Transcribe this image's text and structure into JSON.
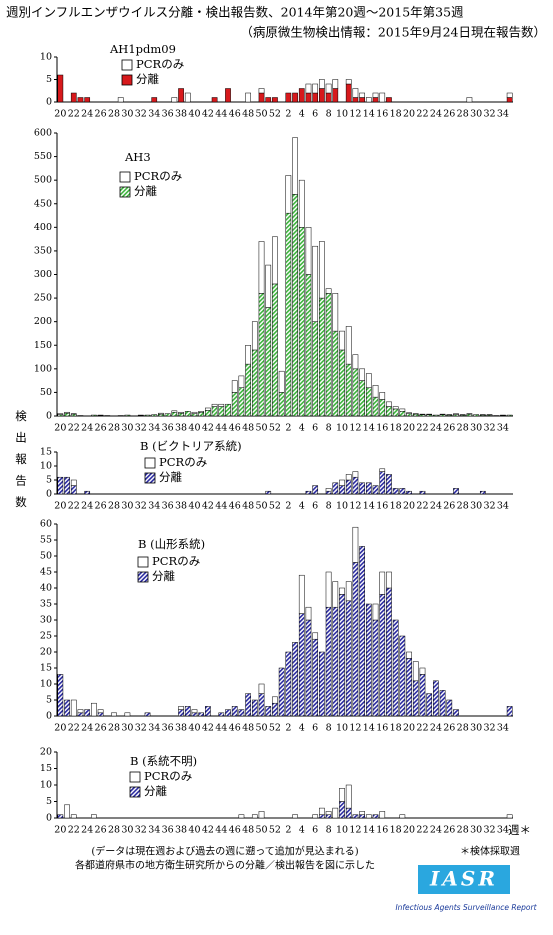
{
  "title": "週別インフルエンザウイルス分離・検出報告数、2014年第20週〜2015年第35週",
  "subtitle": "（病原微生物検出情報：2015年9月24日現在報告数）",
  "y_axis_label": "検出報告数",
  "x_axis_label": "週＊",
  "notes": [
    "(データは現在週および過去の週に遡って追加が見込まれる)",
    "各都道府県市の地方衛生研究所からの分離／検出報告を図に示した"
  ],
  "footnote": "＊検体採取週",
  "logo": "IASR",
  "logo_caption": "Infectious Agents Surveillance Report",
  "chart_data": [
    {
      "type": "bar",
      "stacked": true,
      "title": "AH1pdm09",
      "categories": [
        "20",
        null,
        "22",
        null,
        "24",
        null,
        "26",
        null,
        "28",
        null,
        "30",
        null,
        "32",
        null,
        "34",
        null,
        "36",
        null,
        "38",
        null,
        "40",
        null,
        "42",
        null,
        "44",
        null,
        "46",
        null,
        "48",
        null,
        "50",
        null,
        "52",
        null,
        "2",
        null,
        "4",
        null,
        "6",
        null,
        "8",
        null,
        "10",
        null,
        "12",
        null,
        "14",
        null,
        "16",
        null,
        "18",
        null,
        "20",
        null,
        "22",
        null,
        "24",
        null,
        "26",
        null,
        "28",
        null,
        "30",
        null,
        "32",
        null,
        "34",
        null
      ],
      "series": [
        {
          "name": "PCRのみ",
          "color": "#ffffff",
          "values": [
            0,
            0,
            0,
            0,
            0,
            0,
            0,
            0,
            0,
            1,
            0,
            0,
            0,
            0,
            0,
            0,
            0,
            1,
            0,
            2,
            0,
            0,
            0,
            0,
            0,
            0,
            0,
            0,
            2,
            0,
            1,
            0,
            0,
            0,
            0,
            0,
            0,
            2,
            2,
            2,
            2,
            2,
            0,
            1,
            2,
            1,
            1,
            1,
            2,
            0,
            0,
            0,
            0,
            0,
            0,
            0,
            0,
            0,
            0,
            0,
            0,
            1,
            0,
            0,
            0,
            0,
            0,
            1
          ]
        },
        {
          "name": "分離",
          "color": "#d7191c",
          "pattern": "solid",
          "values": [
            6,
            0,
            2,
            1,
            1,
            0,
            0,
            0,
            0,
            0,
            0,
            0,
            0,
            0,
            1,
            0,
            0,
            0,
            3,
            0,
            0,
            0,
            0,
            1,
            0,
            3,
            0,
            0,
            0,
            0,
            2,
            1,
            1,
            0,
            2,
            2,
            3,
            2,
            2,
            3,
            2,
            3,
            0,
            4,
            1,
            1,
            0,
            1,
            0,
            1,
            0,
            0,
            0,
            0,
            0,
            0,
            0,
            0,
            0,
            0,
            0,
            0,
            0,
            0,
            0,
            0,
            0,
            1
          ]
        }
      ],
      "ylim": [
        0,
        10
      ],
      "yticks": [
        0,
        5,
        10
      ]
    },
    {
      "type": "bar",
      "stacked": true,
      "title": "AH3",
      "categories": [
        "20",
        null,
        "22",
        null,
        "24",
        null,
        "26",
        null,
        "28",
        null,
        "30",
        null,
        "32",
        null,
        "34",
        null,
        "36",
        null,
        "38",
        null,
        "40",
        null,
        "42",
        null,
        "44",
        null,
        "46",
        null,
        "48",
        null,
        "50",
        null,
        "52",
        null,
        "2",
        null,
        "4",
        null,
        "6",
        null,
        "8",
        null,
        "10",
        null,
        "12",
        null,
        "14",
        null,
        "16",
        null,
        "18",
        null,
        "20",
        null,
        "22",
        null,
        "24",
        null,
        "26",
        null,
        "28",
        null,
        "30",
        null,
        "32",
        null,
        "34",
        null
      ],
      "series": [
        {
          "name": "PCRのみ",
          "color": "#ffffff",
          "values": [
            2,
            2,
            1,
            0,
            0,
            0,
            1,
            0,
            0,
            0,
            0,
            0,
            1,
            0,
            0,
            2,
            0,
            3,
            2,
            0,
            3,
            2,
            5,
            5,
            5,
            0,
            25,
            25,
            40,
            60,
            110,
            90,
            100,
            45,
            80,
            120,
            100,
            100,
            160,
            120,
            10,
            80,
            40,
            80,
            30,
            25,
            30,
            25,
            15,
            10,
            5,
            5,
            2,
            1,
            1,
            1,
            0,
            1,
            1,
            2,
            1,
            1,
            0,
            1,
            1,
            0,
            1,
            0
          ]
        },
        {
          "name": "分離",
          "color": "#3cb43c",
          "pattern": "hatch",
          "values": [
            3,
            6,
            4,
            1,
            0,
            2,
            1,
            1,
            0,
            1,
            2,
            0,
            1,
            2,
            3,
            4,
            5,
            8,
            6,
            10,
            5,
            8,
            12,
            20,
            20,
            25,
            50,
            60,
            110,
            140,
            260,
            230,
            280,
            50,
            430,
            470,
            400,
            300,
            200,
            250,
            260,
            180,
            140,
            110,
            100,
            75,
            60,
            40,
            35,
            20,
            15,
            10,
            5,
            4,
            3,
            3,
            2,
            3,
            2,
            3,
            2,
            4,
            3,
            2,
            2,
            1,
            1,
            2
          ]
        }
      ],
      "ylim": [
        0,
        600
      ],
      "yticks": [
        0,
        50,
        100,
        150,
        200,
        250,
        300,
        350,
        400,
        450,
        500,
        550,
        600
      ]
    },
    {
      "type": "bar",
      "stacked": true,
      "title": "B (ビクトリア系統)",
      "categories": [
        "20",
        null,
        "22",
        null,
        "24",
        null,
        "26",
        null,
        "28",
        null,
        "30",
        null,
        "32",
        null,
        "34",
        null,
        "36",
        null,
        "38",
        null,
        "40",
        null,
        "42",
        null,
        "44",
        null,
        "46",
        null,
        "48",
        null,
        "50",
        null,
        "52",
        null,
        "2",
        null,
        "4",
        null,
        "6",
        null,
        "8",
        null,
        "10",
        null,
        "12",
        null,
        "14",
        null,
        "16",
        null,
        "18",
        null,
        "20",
        null,
        "22",
        null,
        "24",
        null,
        "26",
        null,
        "28",
        null,
        "30",
        null,
        "32",
        null,
        "34",
        null
      ],
      "series": [
        {
          "name": "PCRのみ",
          "color": "#ffffff",
          "values": [
            0,
            0,
            2,
            0,
            0,
            0,
            0,
            0,
            0,
            0,
            0,
            0,
            0,
            0,
            0,
            0,
            0,
            0,
            0,
            0,
            0,
            0,
            0,
            0,
            0,
            0,
            0,
            0,
            0,
            0,
            0,
            0,
            0,
            0,
            0,
            0,
            0,
            0,
            0,
            0,
            1,
            0,
            2,
            2,
            2,
            0,
            0,
            0,
            1,
            0,
            0,
            0,
            0,
            0,
            0,
            0,
            0,
            0,
            0,
            0,
            0,
            0,
            0,
            0,
            0,
            0,
            0,
            0
          ]
        },
        {
          "name": "分離",
          "color": "#2a2aa0",
          "pattern": "hatch",
          "values": [
            6,
            6,
            3,
            0,
            1,
            0,
            0,
            0,
            0,
            0,
            0,
            0,
            0,
            0,
            0,
            0,
            0,
            0,
            0,
            0,
            0,
            0,
            0,
            0,
            0,
            0,
            0,
            0,
            0,
            0,
            0,
            1,
            0,
            0,
            0,
            0,
            0,
            1,
            3,
            0,
            1,
            4,
            3,
            5,
            6,
            4,
            4,
            3,
            8,
            7,
            2,
            2,
            1,
            0,
            1,
            0,
            0,
            0,
            0,
            2,
            0,
            0,
            0,
            1,
            0,
            0,
            0,
            0
          ]
        }
      ],
      "ylim": [
        0,
        15
      ],
      "yticks": [
        0,
        5,
        10,
        15
      ]
    },
    {
      "type": "bar",
      "stacked": true,
      "title": "B (山形系統)",
      "categories": [
        "20",
        null,
        "22",
        null,
        "24",
        null,
        "26",
        null,
        "28",
        null,
        "30",
        null,
        "32",
        null,
        "34",
        null,
        "36",
        null,
        "38",
        null,
        "40",
        null,
        "42",
        null,
        "44",
        null,
        "46",
        null,
        "48",
        null,
        "50",
        null,
        "52",
        null,
        "2",
        null,
        "4",
        null,
        "6",
        null,
        "8",
        null,
        "10",
        null,
        "12",
        null,
        "14",
        null,
        "16",
        null,
        "18",
        null,
        "20",
        null,
        "22",
        null,
        "24",
        null,
        "26",
        null,
        "28",
        null,
        "30",
        null,
        "32",
        null,
        "34",
        null
      ],
      "series": [
        {
          "name": "PCRのみ",
          "color": "#ffffff",
          "values": [
            0,
            0,
            5,
            1,
            0,
            4,
            1,
            0,
            1,
            0,
            1,
            0,
            0,
            0,
            0,
            0,
            0,
            0,
            1,
            0,
            1,
            0,
            0,
            0,
            0,
            0,
            0,
            0,
            0,
            0,
            3,
            0,
            2,
            0,
            0,
            0,
            12,
            4,
            2,
            0,
            11,
            8,
            2,
            6,
            11,
            0,
            0,
            5,
            7,
            5,
            0,
            0,
            2,
            6,
            2,
            0,
            0,
            0,
            0,
            0,
            0,
            0,
            0,
            0,
            0,
            0,
            0,
            0
          ]
        },
        {
          "name": "分離",
          "color": "#2a2aa0",
          "pattern": "hatch",
          "values": [
            13,
            5,
            0,
            1,
            2,
            0,
            1,
            0,
            0,
            0,
            0,
            0,
            0,
            1,
            0,
            0,
            0,
            0,
            2,
            3,
            1,
            1,
            3,
            0,
            1,
            2,
            3,
            2,
            7,
            5,
            7,
            3,
            4,
            15,
            20,
            23,
            32,
            30,
            24,
            20,
            34,
            34,
            38,
            36,
            48,
            53,
            35,
            30,
            38,
            40,
            30,
            25,
            18,
            11,
            13,
            7,
            11,
            8,
            5,
            2,
            0,
            0,
            0,
            0,
            0,
            0,
            0,
            3
          ]
        }
      ],
      "ylim": [
        0,
        60
      ],
      "yticks": [
        0,
        5,
        10,
        15,
        20,
        25,
        30,
        35,
        40,
        45,
        50,
        55,
        60
      ]
    },
    {
      "type": "bar",
      "stacked": true,
      "title": "B (系統不明)",
      "categories": [
        "20",
        null,
        "22",
        null,
        "24",
        null,
        "26",
        null,
        "28",
        null,
        "30",
        null,
        "32",
        null,
        "34",
        null,
        "36",
        null,
        "38",
        null,
        "40",
        null,
        "42",
        null,
        "44",
        null,
        "46",
        null,
        "48",
        null,
        "50",
        null,
        "52",
        null,
        "2",
        null,
        "4",
        null,
        "6",
        null,
        "8",
        null,
        "10",
        null,
        "12",
        null,
        "14",
        null,
        "16",
        null,
        "18",
        null,
        "20",
        null,
        "22",
        null,
        "24",
        null,
        "26",
        null,
        "28",
        null,
        "30",
        null,
        "32",
        null,
        "34",
        null
      ],
      "series": [
        {
          "name": "PCRのみ",
          "color": "#ffffff",
          "values": [
            0,
            4,
            1,
            0,
            0,
            1,
            0,
            0,
            0,
            0,
            0,
            0,
            0,
            0,
            0,
            0,
            0,
            0,
            0,
            0,
            0,
            0,
            0,
            0,
            0,
            0,
            0,
            1,
            0,
            1,
            2,
            0,
            0,
            0,
            0,
            1,
            0,
            0,
            1,
            2,
            1,
            3,
            4,
            7,
            0,
            1,
            1,
            0,
            2,
            0,
            0,
            1,
            0,
            0,
            0,
            0,
            0,
            0,
            0,
            0,
            0,
            0,
            0,
            0,
            0,
            0,
            0,
            1
          ]
        },
        {
          "name": "分離",
          "color": "#2a2aa0",
          "pattern": "hatch",
          "values": [
            1,
            0,
            0,
            0,
            0,
            0,
            0,
            0,
            0,
            0,
            0,
            0,
            0,
            0,
            0,
            0,
            0,
            0,
            0,
            0,
            0,
            0,
            0,
            0,
            0,
            0,
            0,
            0,
            0,
            0,
            0,
            0,
            0,
            0,
            0,
            0,
            0,
            0,
            0,
            1,
            1,
            0,
            5,
            3,
            1,
            1,
            0,
            1,
            0,
            0,
            0,
            0,
            0,
            0,
            0,
            0,
            0,
            0,
            0,
            0,
            0,
            0,
            0,
            0,
            0,
            0,
            0,
            0
          ]
        }
      ],
      "ylim": [
        0,
        20
      ],
      "yticks": [
        0,
        5,
        10,
        15,
        20
      ]
    }
  ]
}
